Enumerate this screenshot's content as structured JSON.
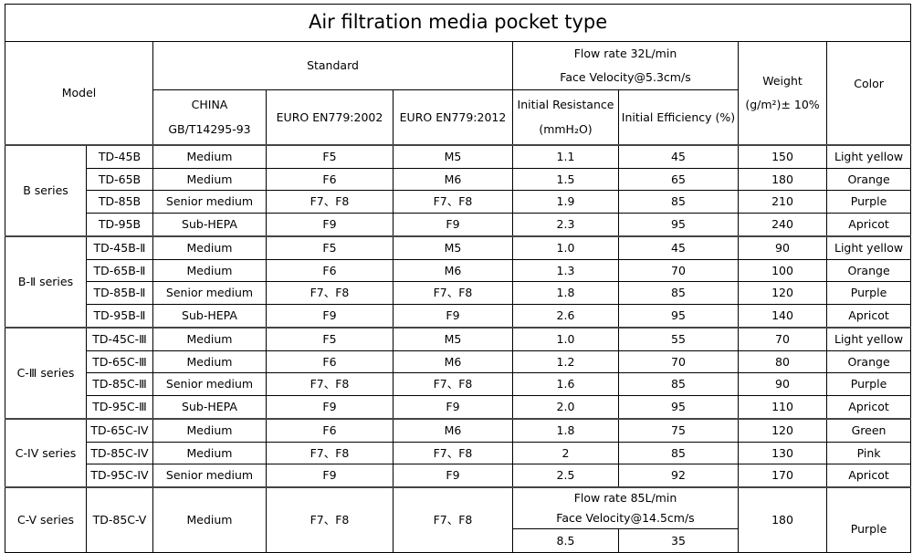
{
  "title": "Air filtration media pocket type",
  "headers": {
    "model": "Model",
    "standard": "Standard",
    "flow_line1": "Flow rate 32L/min",
    "flow_line2": "Face Velocity@5.3cm/s",
    "weight_line1": "Weight",
    "weight_line2": "(g/m²)± 10%",
    "color": "Color",
    "china_line1": "CHINA",
    "china_line2": "GB/T14295-93",
    "euro2002": "EURO EN779:2002",
    "euro2012": "EURO EN779:2012",
    "resistance_line1": "Initial Resistance",
    "resistance_line2": "(mmH₂O)",
    "efficiency": "Initial Efficiency  (%)"
  },
  "groups": [
    {
      "series": "B series",
      "rows": [
        [
          "TD-45B",
          "Medium",
          "F5",
          "M5",
          "1.1",
          "45",
          "150",
          "Light yellow"
        ],
        [
          "TD-65B",
          "Medium",
          "F6",
          "M6",
          "1.5",
          "65",
          "180",
          "Orange"
        ],
        [
          "TD-85B",
          "Senior medium",
          "F7、F8",
          "F7、F8",
          "1.9",
          "85",
          "210",
          "Purple"
        ],
        [
          "TD-95B",
          "Sub-HEPA",
          "F9",
          "F9",
          "2.3",
          "95",
          "240",
          "Apricot"
        ]
      ]
    },
    {
      "series": "B-Ⅱ series",
      "rows": [
        [
          "TD-45B-Ⅱ",
          "Medium",
          "F5",
          "M5",
          "1.0",
          "45",
          "90",
          "Light yellow"
        ],
        [
          "TD-65B-Ⅱ",
          "Medium",
          "F6",
          "M6",
          "1.3",
          "70",
          "100",
          "Orange"
        ],
        [
          "TD-85B-Ⅱ",
          "Senior medium",
          "F7、F8",
          "F7、F8",
          "1.8",
          "85",
          "120",
          "Purple"
        ],
        [
          "TD-95B-Ⅱ",
          "Sub-HEPA",
          "F9",
          "F9",
          "2.6",
          "95",
          "140",
          "Apricot"
        ]
      ]
    },
    {
      "series": "C-Ⅲ series",
      "rows": [
        [
          "TD-45C-Ⅲ",
          "Medium",
          "F5",
          "M5",
          "1.0",
          "55",
          "70",
          "Light yellow"
        ],
        [
          "TD-65C-Ⅲ",
          "Medium",
          "F6",
          "M6",
          "1.2",
          "70",
          "80",
          "Orange"
        ],
        [
          "TD-85C-Ⅲ",
          "Senior medium",
          "F7、F8",
          "F7、F8",
          "1.6",
          "85",
          "90",
          "Purple"
        ],
        [
          "TD-95C-Ⅲ",
          "Sub-HEPA",
          "F9",
          "F9",
          "2.0",
          "95",
          "110",
          "Apricot"
        ]
      ]
    },
    {
      "series": "C-IV series",
      "rows": [
        [
          "TD-65C-IV",
          "Medium",
          "F6",
          "M6",
          "1.8",
          "75",
          "120",
          "Green"
        ],
        [
          "TD-85C-IV",
          "Medium",
          "F7、F8",
          "F7、F8",
          "2",
          "85",
          "130",
          "Pink"
        ],
        [
          "TD-95C-IV",
          "Senior medium",
          "F9",
          "F9",
          "2.5",
          "92",
          "170",
          "Apricot"
        ]
      ]
    }
  ],
  "cv": {
    "series": "C-V series",
    "model": "TD-85C-V",
    "china": "Medium",
    "euro2002": "F7、F8",
    "euro2012": "F7、F8",
    "flow_line1": "Flow rate 85L/min",
    "flow_line2": "Face Velocity@14.5cm/s",
    "resistance": "8.5",
    "efficiency": "35",
    "weight": "180",
    "color": "Purple"
  }
}
